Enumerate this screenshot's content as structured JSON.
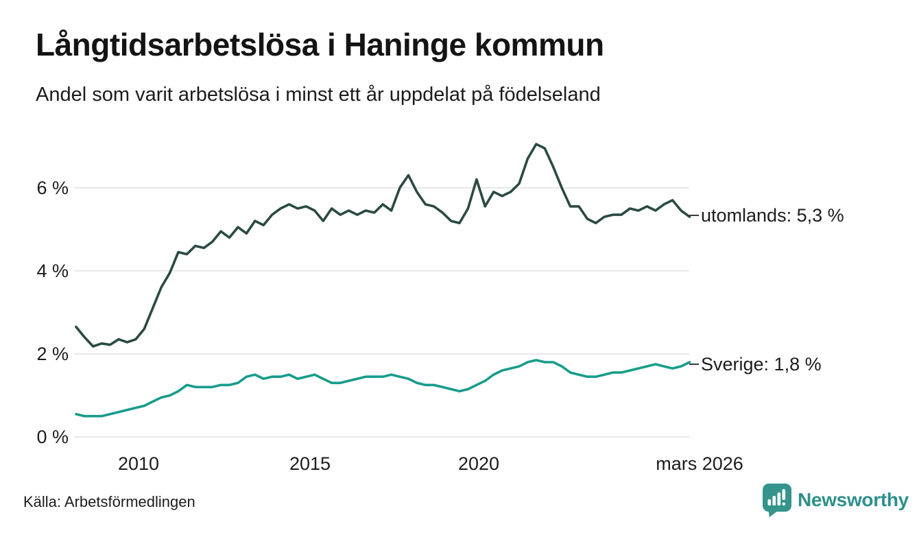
{
  "header": {
    "title": "Långtidsarbetslösa i Haninge kommun",
    "subtitle": "Andel som varit arbetslösa i minst ett år uppdelat på födelseland"
  },
  "chart_data": {
    "type": "line",
    "title": "Långtidsarbetslösa i Haninge kommun",
    "subtitle": "Andel som varit arbetslösa i minst ett år uppdelat på födelseland",
    "unit": "%",
    "ylim": [
      0,
      7.5
    ],
    "grid": "horizontal",
    "gridline_color": "#E7E7EA",
    "legend_position": "end-of-line-labels",
    "x": [
      "2008-03",
      "2008-06",
      "2008-09",
      "2008-12",
      "2009-03",
      "2009-06",
      "2009-09",
      "2009-12",
      "2010-03",
      "2010-06",
      "2010-09",
      "2010-12",
      "2011-03",
      "2011-06",
      "2011-09",
      "2011-12",
      "2012-03",
      "2012-06",
      "2012-09",
      "2012-12",
      "2013-03",
      "2013-06",
      "2013-09",
      "2013-12",
      "2014-03",
      "2014-06",
      "2014-09",
      "2014-12",
      "2015-03",
      "2015-06",
      "2015-09",
      "2015-12",
      "2016-03",
      "2016-06",
      "2016-09",
      "2016-12",
      "2017-03",
      "2017-06",
      "2017-09",
      "2017-12",
      "2018-03",
      "2018-06",
      "2018-09",
      "2018-12",
      "2019-03",
      "2019-06",
      "2019-09",
      "2019-12",
      "2020-03",
      "2020-06",
      "2020-09",
      "2020-12",
      "2021-03",
      "2021-06",
      "2021-09",
      "2021-12",
      "2022-03",
      "2022-06",
      "2022-09",
      "2022-12",
      "2023-03",
      "2023-06",
      "2023-09",
      "2023-12",
      "2024-03",
      "2024-06",
      "2024-09",
      "2024-12",
      "2025-03",
      "2025-06",
      "2025-09",
      "2025-12",
      "2026-03"
    ],
    "series": [
      {
        "name": "utomlands",
        "end_label": "utomlands: 5,3 %",
        "latest_value": "5,3 %",
        "color": "#2A4A42",
        "values": [
          2.65,
          2.4,
          2.18,
          2.25,
          2.22,
          2.35,
          2.28,
          2.35,
          2.6,
          3.1,
          3.6,
          3.95,
          4.45,
          4.4,
          4.6,
          4.55,
          4.7,
          4.95,
          4.8,
          5.05,
          4.9,
          5.2,
          5.1,
          5.35,
          5.5,
          5.6,
          5.5,
          5.55,
          5.45,
          5.2,
          5.5,
          5.35,
          5.45,
          5.35,
          5.45,
          5.4,
          5.6,
          5.45,
          6.0,
          6.3,
          5.9,
          5.6,
          5.55,
          5.4,
          5.2,
          5.15,
          5.5,
          6.2,
          5.55,
          5.9,
          5.8,
          5.9,
          6.1,
          6.7,
          7.05,
          6.95,
          6.5,
          6.0,
          5.55,
          5.55,
          5.25,
          5.15,
          5.3,
          5.35,
          5.35,
          5.5,
          5.45,
          5.55,
          5.45,
          5.6,
          5.7,
          5.45,
          5.3
        ]
      },
      {
        "name": "Sverige",
        "end_label": "Sverige: 1,8 %",
        "latest_value": "1,8 %",
        "color": "#179C8B",
        "values": [
          0.55,
          0.5,
          0.5,
          0.5,
          0.55,
          0.6,
          0.65,
          0.7,
          0.75,
          0.85,
          0.95,
          1.0,
          1.1,
          1.25,
          1.2,
          1.2,
          1.2,
          1.25,
          1.25,
          1.3,
          1.45,
          1.5,
          1.4,
          1.45,
          1.45,
          1.5,
          1.4,
          1.45,
          1.5,
          1.4,
          1.3,
          1.3,
          1.35,
          1.4,
          1.45,
          1.45,
          1.45,
          1.5,
          1.45,
          1.4,
          1.3,
          1.25,
          1.25,
          1.2,
          1.15,
          1.1,
          1.15,
          1.25,
          1.35,
          1.5,
          1.6,
          1.65,
          1.7,
          1.8,
          1.85,
          1.8,
          1.8,
          1.7,
          1.55,
          1.5,
          1.45,
          1.45,
          1.5,
          1.55,
          1.55,
          1.6,
          1.65,
          1.7,
          1.75,
          1.7,
          1.65,
          1.7,
          1.8
        ]
      }
    ],
    "x_ticks": [
      {
        "label": "2010",
        "year": 2010
      },
      {
        "label": "2015",
        "year": 2015
      },
      {
        "label": "2020",
        "year": 2020
      },
      {
        "label": "mars 2026",
        "year": 2026.17
      }
    ],
    "y_ticks": [
      {
        "label": "6 %",
        "value": 6
      },
      {
        "label": "4 %",
        "value": 4
      },
      {
        "label": "2 %",
        "value": 2
      },
      {
        "label": "0 %",
        "value": 0
      }
    ]
  },
  "footer": {
    "source": "Källa: Arbetsförmedlingen",
    "brand": "Newsworthy",
    "brand_color": "#2E908A",
    "brand_icon_color": "#35948C"
  }
}
